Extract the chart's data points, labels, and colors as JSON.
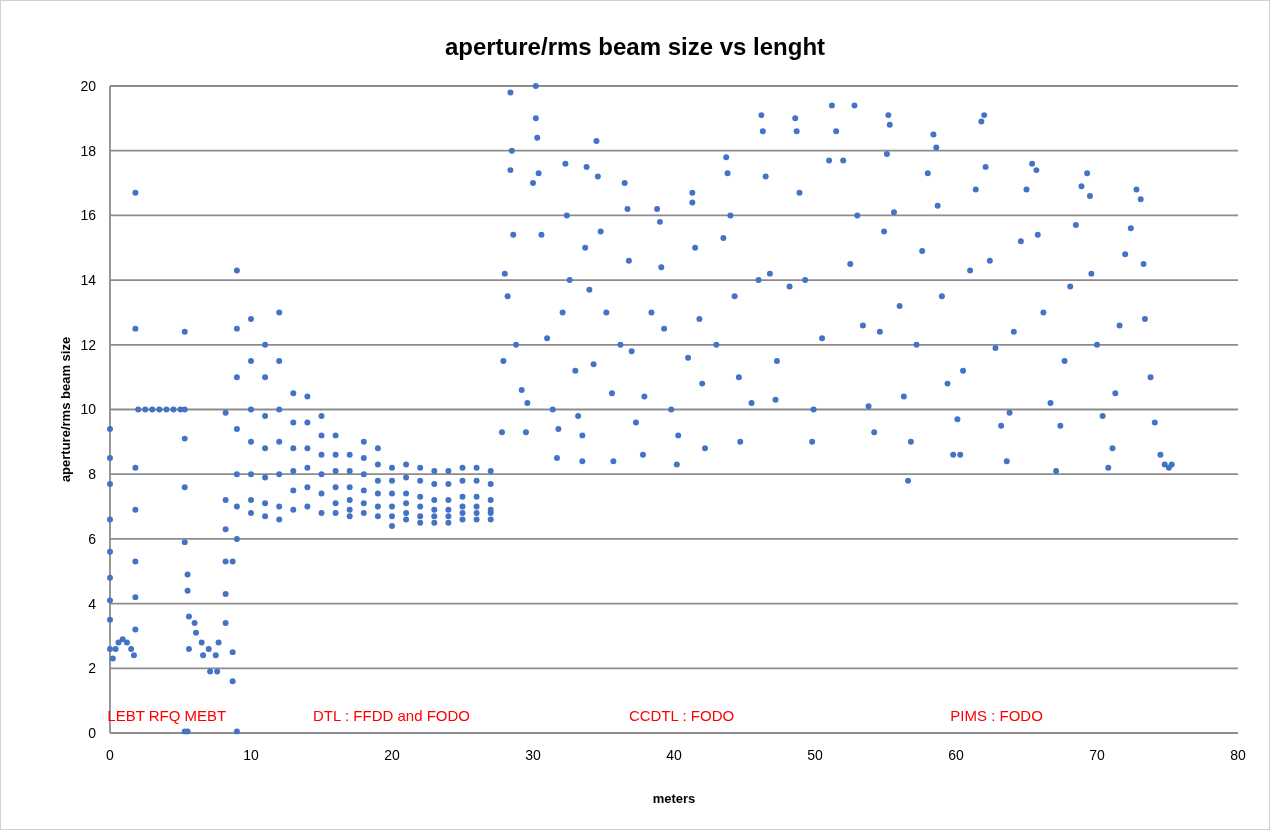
{
  "chart_data": {
    "type": "scatter",
    "title": "aperture/rms beam size vs lenght",
    "xlabel": "meters",
    "ylabel": "aperture/rms beam size",
    "xlim": [
      0,
      80
    ],
    "xticks": [
      0,
      10,
      20,
      30,
      40,
      50,
      60,
      70,
      80
    ],
    "ylim": [
      0,
      20
    ],
    "yticks": [
      0,
      2,
      4,
      6,
      8,
      10,
      12,
      14,
      16,
      18,
      20
    ],
    "grid": "y",
    "marker": "circle",
    "annotations": [
      "LEBT RFQ MEBT",
      "DTL : FFDD and FODO",
      "CCDTL :  FODO",
      "PIMS : FODO"
    ],
    "series": [
      {
        "color": "#4472c4",
        "x": [
          0,
          0,
          0,
          0,
          0,
          0,
          0,
          0,
          0,
          0.2,
          0.4,
          0.6,
          0.9,
          1.2,
          1.5,
          1.7,
          1.8,
          1.8,
          1.8,
          1.8,
          1.8,
          1.8,
          1.8,
          2,
          2.5,
          3,
          3.5,
          4,
          4.5,
          5,
          5.3,
          5.3,
          5.3,
          5.3,
          5.3,
          5.3,
          5.5,
          9,
          5.5,
          5.5,
          5.6,
          5.6,
          6,
          6.1,
          6.5,
          6.6,
          7,
          7.1,
          7.5,
          7.6,
          7.7,
          8.2,
          8.2,
          8.2,
          8.2,
          8.2,
          8.2,
          8.7,
          8.7,
          8.7
        ],
        "values": [
          9.4,
          8.5,
          7.7,
          6.6,
          5.6,
          4.8,
          4.1,
          3.5,
          2.6,
          2.3,
          2.6,
          2.8,
          2.9,
          2.8,
          2.6,
          2.4,
          3.2,
          4.2,
          5.3,
          6.9,
          8.2,
          12.5,
          16.7,
          10,
          10,
          10,
          10,
          10,
          10,
          10,
          10,
          12.4,
          9.1,
          7.6,
          5.9,
          0.05,
          0.05,
          0.05,
          4.9,
          4.4,
          3.6,
          2.6,
          3.4,
          3.1,
          2.8,
          2.4,
          2.6,
          1.9,
          2.4,
          1.9,
          2.8,
          9.9,
          7.2,
          6.3,
          5.3,
          4.3,
          3.4,
          5.3,
          2.5,
          1.6
        ]
      },
      {
        "color": "#4472c4",
        "x": [
          9,
          9,
          9,
          9,
          9,
          9,
          9,
          10,
          10,
          10,
          10,
          10,
          10,
          10,
          11,
          11,
          11,
          11,
          11,
          11,
          11,
          12,
          12,
          12,
          12,
          12,
          12,
          12,
          13,
          13,
          13,
          13,
          13,
          13,
          14,
          14,
          14,
          14,
          14,
          14,
          15,
          15,
          15,
          15,
          15,
          15,
          16,
          16,
          16,
          16,
          16,
          16,
          17,
          17,
          17,
          17,
          17,
          17,
          18,
          18,
          18,
          18,
          18,
          18,
          19,
          19,
          19,
          19,
          19,
          19,
          20,
          20,
          20,
          20,
          20,
          20,
          21,
          21,
          21,
          21,
          21,
          21,
          22,
          22,
          22,
          22,
          22,
          22,
          23,
          23,
          23,
          23,
          23,
          23,
          24,
          24,
          24,
          24,
          24,
          24,
          25,
          25,
          25,
          25,
          25,
          25,
          26,
          26,
          26,
          26,
          26,
          26,
          27,
          27,
          27,
          27,
          27,
          27
        ],
        "values": [
          14.3,
          12.5,
          11,
          9.4,
          8,
          7,
          6,
          12.8,
          11.5,
          10,
          9,
          8,
          7.2,
          6.8,
          12,
          11,
          9.8,
          8.8,
          7.9,
          7.1,
          6.7,
          13,
          11.5,
          10,
          9,
          8,
          7,
          6.6,
          10.5,
          9.6,
          8.8,
          8.1,
          7.5,
          6.9,
          10.4,
          9.6,
          8.8,
          8.2,
          7.6,
          7,
          9.8,
          9.2,
          8.6,
          8,
          7.4,
          6.8,
          9.2,
          8.6,
          8.1,
          7.6,
          7.1,
          6.8,
          8.6,
          8.1,
          7.6,
          7.2,
          6.9,
          6.7,
          9,
          8.5,
          8,
          7.5,
          7.1,
          6.8,
          8.8,
          8.3,
          7.8,
          7.4,
          7,
          6.7,
          8.2,
          7.8,
          7.4,
          7,
          6.7,
          6.4,
          8.3,
          7.9,
          7.4,
          7.1,
          6.8,
          6.6,
          8.2,
          7.8,
          7.3,
          7,
          6.7,
          6.5,
          8.1,
          7.7,
          7.2,
          6.9,
          6.7,
          6.5,
          8.1,
          7.7,
          7.2,
          6.9,
          6.7,
          6.5,
          8.2,
          7.8,
          7.3,
          7,
          6.8,
          6.6,
          8.2,
          7.8,
          7.3,
          7,
          6.8,
          6.6,
          8.1,
          7.7,
          7.2,
          6.9,
          6.8,
          6.6
        ]
      },
      {
        "color": "#4472c4",
        "x": [
          27.8,
          27.9,
          28,
          28.2,
          28.4,
          28.4,
          28.5,
          28.6,
          28.8,
          29.2,
          29.5,
          29.6,
          30,
          30.2,
          30.2,
          30.3,
          30.4,
          30.6,
          31,
          31.4,
          31.7,
          31.8,
          32.1,
          32.3,
          32.4,
          32.6,
          33,
          33.2,
          33.5,
          33.5,
          33.7,
          33.8,
          34,
          34.3,
          34.5,
          34.6,
          34.8,
          35.2,
          35.6,
          35.7,
          36.2,
          36.5,
          36.7,
          36.8,
          37,
          37.3,
          37.8,
          37.9,
          38.4,
          38.8,
          39,
          39.1,
          39.3,
          39.8,
          40.2,
          40.3,
          41,
          41.3,
          41.3,
          41.5,
          41.8,
          42,
          42.2,
          43,
          43.5,
          43.7,
          43.8,
          44,
          44.3,
          44.6,
          44.7,
          45.5,
          46,
          46.2,
          46.3,
          46.5,
          46.8,
          47.2,
          47.3,
          48.2,
          48.6,
          48.7,
          48.9,
          49.3,
          49.8,
          49.9,
          50.5,
          51,
          51.2,
          51.5,
          52,
          52.5,
          52.8,
          53,
          53.4,
          53.8
        ],
        "values": [
          9.3,
          11.5,
          14.2,
          13.5,
          17.4,
          19.8,
          18,
          15.4,
          12,
          10.6,
          9.3,
          10.2,
          17,
          20,
          19,
          18.4,
          17.3,
          15.4,
          12.2,
          10,
          8.5,
          9.4,
          13,
          17.6,
          16,
          14,
          11.2,
          9.8,
          8.4,
          9.2,
          15,
          17.5,
          13.7,
          11.4,
          18.3,
          17.2,
          15.5,
          13,
          10.5,
          8.4,
          12,
          17,
          16.2,
          14.6,
          11.8,
          9.6,
          8.6,
          10.4,
          13,
          16.2,
          15.8,
          14.4,
          12.5,
          10,
          8.3,
          9.2,
          11.6,
          16.7,
          16.4,
          15,
          12.8,
          10.8,
          8.8,
          12,
          15.3,
          17.8,
          17.3,
          16,
          13.5,
          11,
          9,
          10.2,
          14,
          19.1,
          18.6,
          17.2,
          14.2,
          10.3,
          11.5,
          13.8,
          19,
          18.6,
          16.7,
          14,
          9,
          10,
          12.2,
          17.7,
          19.4,
          18.6,
          17.7,
          14.5,
          19.4,
          16,
          12.6,
          10.1
        ]
      },
      {
        "color": "#4472c4",
        "x": [
          54.2,
          54.6,
          54.9,
          55.1,
          55.2,
          55.3,
          55.6,
          56,
          56.3,
          56.6,
          56.8,
          57.2,
          57.6,
          58,
          58.4,
          58.6,
          58.7,
          59,
          59.4,
          59.8,
          60.1,
          60.3,
          60.5,
          61,
          61.4,
          61.8,
          62,
          62.1,
          62.4,
          62.8,
          63.2,
          63.6,
          63.8,
          64.1,
          64.6,
          65,
          65.4,
          65.7,
          65.8,
          66.2,
          66.7,
          67.1,
          67.4,
          67.7,
          68.1,
          68.5,
          68.9,
          69.3,
          69.5,
          69.6,
          70,
          70.4,
          70.8,
          71.1,
          71.3,
          71.6,
          72,
          72.4,
          72.8,
          73.1,
          73.3,
          73.4,
          73.8,
          74.1,
          74.5,
          74.8,
          75.1,
          75.3
        ],
        "values": [
          9.3,
          12.4,
          15.5,
          17.9,
          19.1,
          18.8,
          16.1,
          13.2,
          10.4,
          7.8,
          9,
          12,
          14.9,
          17.3,
          18.5,
          18.1,
          16.3,
          13.5,
          10.8,
          8.6,
          9.7,
          8.6,
          11.2,
          14.3,
          16.8,
          18.9,
          19.1,
          17.5,
          14.6,
          11.9,
          9.5,
          8.4,
          9.9,
          12.4,
          15.2,
          16.8,
          17.6,
          17.4,
          15.4,
          13,
          10.2,
          8.1,
          9.5,
          11.5,
          13.8,
          15.7,
          16.9,
          17.3,
          16.6,
          14.2,
          12,
          9.8,
          8.2,
          8.8,
          10.5,
          12.6,
          14.8,
          15.6,
          16.8,
          16.5,
          14.5,
          12.8,
          11,
          9.6,
          8.6,
          8.3,
          8.2,
          8.3
        ]
      }
    ]
  }
}
